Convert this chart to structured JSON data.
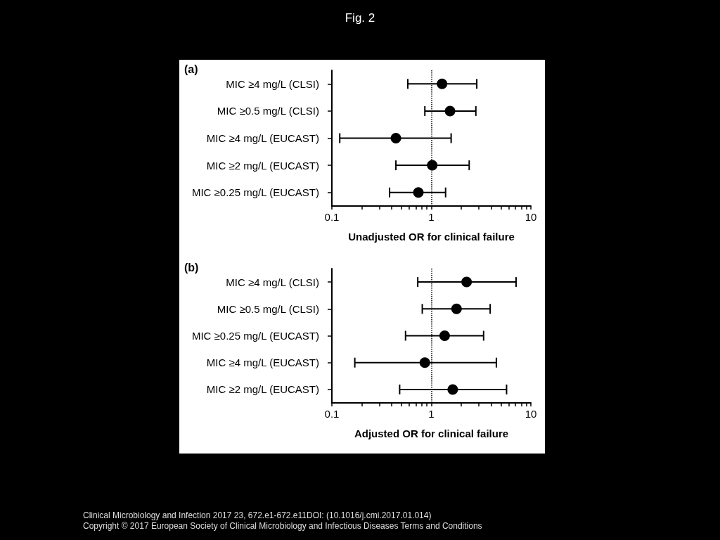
{
  "chart_data": [
    {
      "type": "other",
      "title": "Fig. 2"
    },
    {
      "type": "scatter",
      "title": "(a)",
      "orientation": "horizontal",
      "marker": "circle",
      "color": "#000000",
      "log": "x",
      "xlim": [
        0.1,
        10
      ],
      "xticks": [
        0.1,
        {
          "value": 0.2,
          "label": null
        },
        {
          "value": 0.3,
          "label": null
        },
        {
          "value": 0.4,
          "label": null
        },
        {
          "value": 0.5,
          "label": null
        },
        {
          "value": 0.6,
          "label": null
        },
        {
          "value": 0.7,
          "label": null
        },
        {
          "value": 0.8,
          "label": null
        },
        {
          "value": 0.9,
          "label": null
        },
        1,
        {
          "value": 2,
          "label": null
        },
        {
          "value": 3,
          "label": null
        },
        {
          "value": 4,
          "label": null
        },
        {
          "value": 5,
          "label": null
        },
        {
          "value": 6,
          "label": null
        },
        {
          "value": 7,
          "label": null
        },
        {
          "value": 8,
          "label": null
        },
        {
          "value": 9,
          "label": null
        },
        10
      ],
      "xlabel": "Unadjusted OR for clinical failure",
      "categories": [
        "MIC ≥4 mg/L (CLSI)",
        "MIC ≥0.5 mg/L (CLSI)",
        "MIC ≥4 mg/L (EUCAST)",
        "MIC ≥2 mg/L (EUCAST)",
        "MIC ≥0.25 mg/L (EUCAST)"
      ],
      "values": [
        1.28,
        1.54,
        0.44,
        1.02,
        0.74
      ],
      "errors": [
        [
          0.58,
          2.86
        ],
        [
          0.86,
          2.8
        ],
        [
          0.12,
          1.58
        ],
        [
          0.44,
          2.4
        ],
        [
          0.38,
          1.39
        ]
      ],
      "ref_lines": [
        {
          "axis": "x",
          "value": 1,
          "line_style": "dotted",
          "color": "#000000"
        }
      ]
    },
    {
      "type": "scatter",
      "title": "(b)",
      "orientation": "horizontal",
      "marker": "circle",
      "color": "#000000",
      "log": "x",
      "xlim": [
        0.1,
        10
      ],
      "xticks": [
        0.1,
        {
          "value": 0.2,
          "label": null
        },
        {
          "value": 0.3,
          "label": null
        },
        {
          "value": 0.4,
          "label": null
        },
        {
          "value": 0.5,
          "label": null
        },
        {
          "value": 0.6,
          "label": null
        },
        {
          "value": 0.7,
          "label": null
        },
        {
          "value": 0.8,
          "label": null
        },
        {
          "value": 0.9,
          "label": null
        },
        1,
        {
          "value": 2,
          "label": null
        },
        {
          "value": 3,
          "label": null
        },
        {
          "value": 4,
          "label": null
        },
        {
          "value": 5,
          "label": null
        },
        {
          "value": 6,
          "label": null
        },
        {
          "value": 7,
          "label": null
        },
        {
          "value": 8,
          "label": null
        },
        {
          "value": 9,
          "label": null
        },
        10
      ],
      "xlabel": "Adjusted OR for clinical failure",
      "categories": [
        "MIC ≥4 mg/L (CLSI)",
        "MIC ≥0.5 mg/L (CLSI)",
        "MIC ≥0.25 mg/L (EUCAST)",
        "MIC ≥4 mg/L (EUCAST)",
        "MIC ≥2 mg/L (EUCAST)"
      ],
      "values": [
        2.26,
        1.79,
        1.36,
        0.86,
        1.64
      ],
      "errors": [
        [
          0.73,
          7.1
        ],
        [
          0.81,
          3.9
        ],
        [
          0.55,
          3.35
        ],
        [
          0.17,
          4.5
        ],
        [
          0.48,
          5.7
        ]
      ],
      "ref_lines": [
        {
          "axis": "x",
          "value": 1,
          "line_style": "dotted",
          "color": "#000000"
        }
      ]
    },
    {
      "type": "other",
      "annotations": [
        "Clinical Microbiology and Infection 2017 23, 672.e1-672.e11DOI: (10.1016/j.cmi.2017.01.014)",
        "Copyright © 2017 European Society of Clinical Microbiology and Infectious Diseases Terms and Conditions"
      ]
    }
  ]
}
